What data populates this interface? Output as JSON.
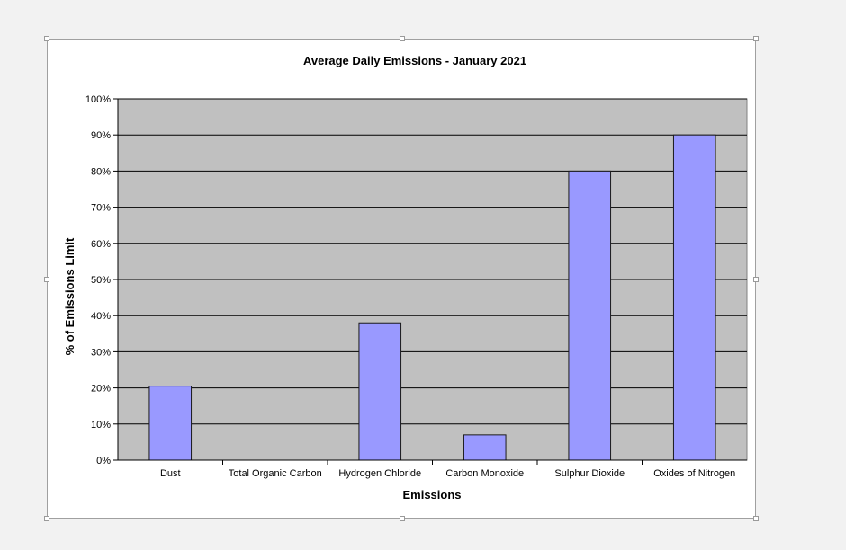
{
  "chart_data": {
    "type": "bar",
    "title": "Average Daily Emissions - January 2021",
    "xlabel": "Emissions",
    "ylabel": "% of Emissions Limit",
    "categories": [
      "Dust",
      "Total Organic Carbon",
      "Hydrogen Chloride",
      "Carbon Monoxide",
      "Sulphur Dioxide",
      "Oxides of Nitrogen"
    ],
    "values": [
      20.5,
      0,
      38,
      7,
      80,
      90
    ],
    "ylim": [
      0,
      100
    ],
    "yticks": [
      "0%",
      "10%",
      "20%",
      "30%",
      "40%",
      "50%",
      "60%",
      "70%",
      "80%",
      "90%",
      "100%"
    ],
    "grid": true,
    "legend": "none",
    "colors": {
      "bar": "#9999ff",
      "bar_border": "#1a1a1a",
      "plot_background": "#c0c0c0",
      "gridline": "#000000",
      "page_background": "#f2f2f2"
    }
  }
}
